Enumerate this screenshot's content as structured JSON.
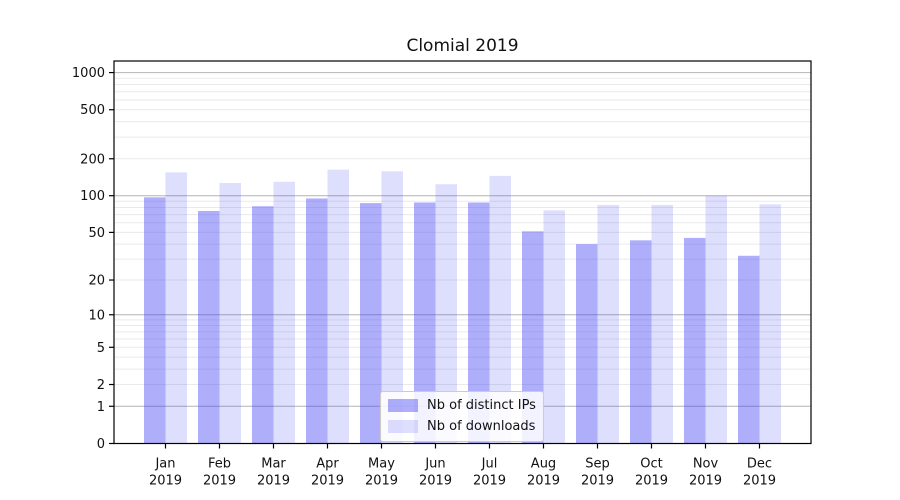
{
  "chart_data": {
    "type": "bar",
    "title": "Clomial 2019",
    "xlabel": "",
    "ylabel": "",
    "categories": [
      "Jan",
      "Feb",
      "Mar",
      "Apr",
      "May",
      "Jun",
      "Jul",
      "Aug",
      "Sep",
      "Oct",
      "Nov",
      "Dec"
    ],
    "year": "2019",
    "series": [
      {
        "name": "Nb of distinct IPs",
        "color": "rgba(62,62,242,0.42)",
        "values": [
          97,
          75,
          82,
          95,
          87,
          88,
          88,
          51,
          40,
          43,
          45,
          32
        ]
      },
      {
        "name": "Nb of downloads",
        "color": "rgba(62,62,242,0.17)",
        "values": [
          155,
          127,
          130,
          163,
          158,
          124,
          145,
          76,
          84,
          84,
          100,
          85
        ]
      }
    ],
    "y_axis": {
      "scale": "log1p",
      "ticks": [
        1000,
        500,
        200,
        100,
        50,
        20,
        10,
        5,
        2,
        1,
        0
      ],
      "major_gridlines": [
        1,
        10,
        100,
        1000
      ],
      "minor_gridlines": [
        2,
        3,
        4,
        5,
        6,
        7,
        8,
        9,
        20,
        30,
        40,
        50,
        60,
        70,
        80,
        90,
        200,
        300,
        400,
        500,
        600,
        700,
        800,
        900
      ],
      "ylim": [
        0,
        1326
      ]
    },
    "grid": true,
    "legend_position": "lower center"
  },
  "colors": {
    "grid_major": "#b4b4b4",
    "grid_minor": "#eaeaea",
    "spine": "#000000",
    "tick_text": "#111111",
    "background": "#ffffff"
  }
}
